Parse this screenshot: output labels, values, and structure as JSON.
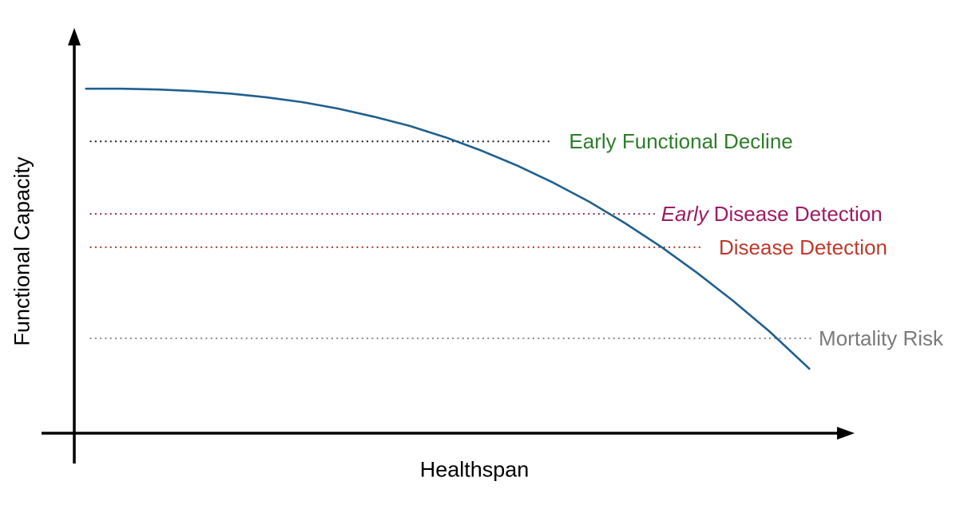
{
  "chart_data": {
    "type": "line",
    "title": "",
    "xlabel": "Healthspan",
    "ylabel": "Functional Capacity",
    "x_range": [
      0,
      100
    ],
    "y_range": [
      0,
      100
    ],
    "grid": false,
    "legend": "none",
    "axes_style": "arrow-tipped black axes, no ticks, no numeric labels (conceptual diagram)",
    "series": [
      {
        "name": "Functional capacity trajectory",
        "style": "solid smooth curve",
        "color": "#205f8e",
        "points": [
          [
            1.5,
            85.0
          ],
          [
            6.1,
            85.0
          ],
          [
            10.8,
            84.8
          ],
          [
            15.4,
            84.4
          ],
          [
            20.0,
            83.8
          ],
          [
            24.6,
            82.9
          ],
          [
            29.2,
            81.7
          ],
          [
            33.8,
            80.1
          ],
          [
            38.4,
            78.1
          ],
          [
            43.0,
            75.8
          ],
          [
            47.6,
            73.0
          ],
          [
            52.2,
            69.7
          ],
          [
            56.8,
            66.0
          ],
          [
            61.4,
            61.8
          ],
          [
            66.0,
            57.1
          ],
          [
            70.6,
            51.8
          ],
          [
            75.2,
            46.0
          ],
          [
            79.8,
            39.6
          ],
          [
            84.4,
            32.7
          ],
          [
            89.1,
            25.1
          ],
          [
            94.2,
            15.9
          ]
        ]
      }
    ],
    "thresholds": [
      {
        "label": "Early Functional Decline",
        "italic_prefix": "",
        "y": 72.0,
        "x_start": 2.0,
        "x_end": 60.9,
        "label_x": 63.4,
        "line_style": "dotted",
        "line_color": "#1a1a1a",
        "text_color": "#2e7d2a"
      },
      {
        "label": "Disease Detection",
        "italic_prefix": "Early",
        "y": 54.1,
        "x_start": 2.0,
        "x_end": 74.4,
        "label_x": 75.2,
        "line_style": "dotted",
        "line_color": "#8e2558",
        "text_color": "#9e1b63"
      },
      {
        "label": "Disease Detection",
        "italic_prefix": "",
        "y": 45.9,
        "x_start": 2.0,
        "x_end": 80.3,
        "label_x": 82.6,
        "line_style": "dotted",
        "line_color": "#a93a2b",
        "text_color": "#c0392b"
      },
      {
        "label": "Mortality Risk",
        "italic_prefix": "",
        "y": 23.4,
        "x_start": 2.0,
        "x_end": 94.5,
        "label_x": 95.4,
        "line_style": "dotted",
        "line_color": "#8a8a8a",
        "text_color": "#7a7a7a"
      }
    ]
  }
}
